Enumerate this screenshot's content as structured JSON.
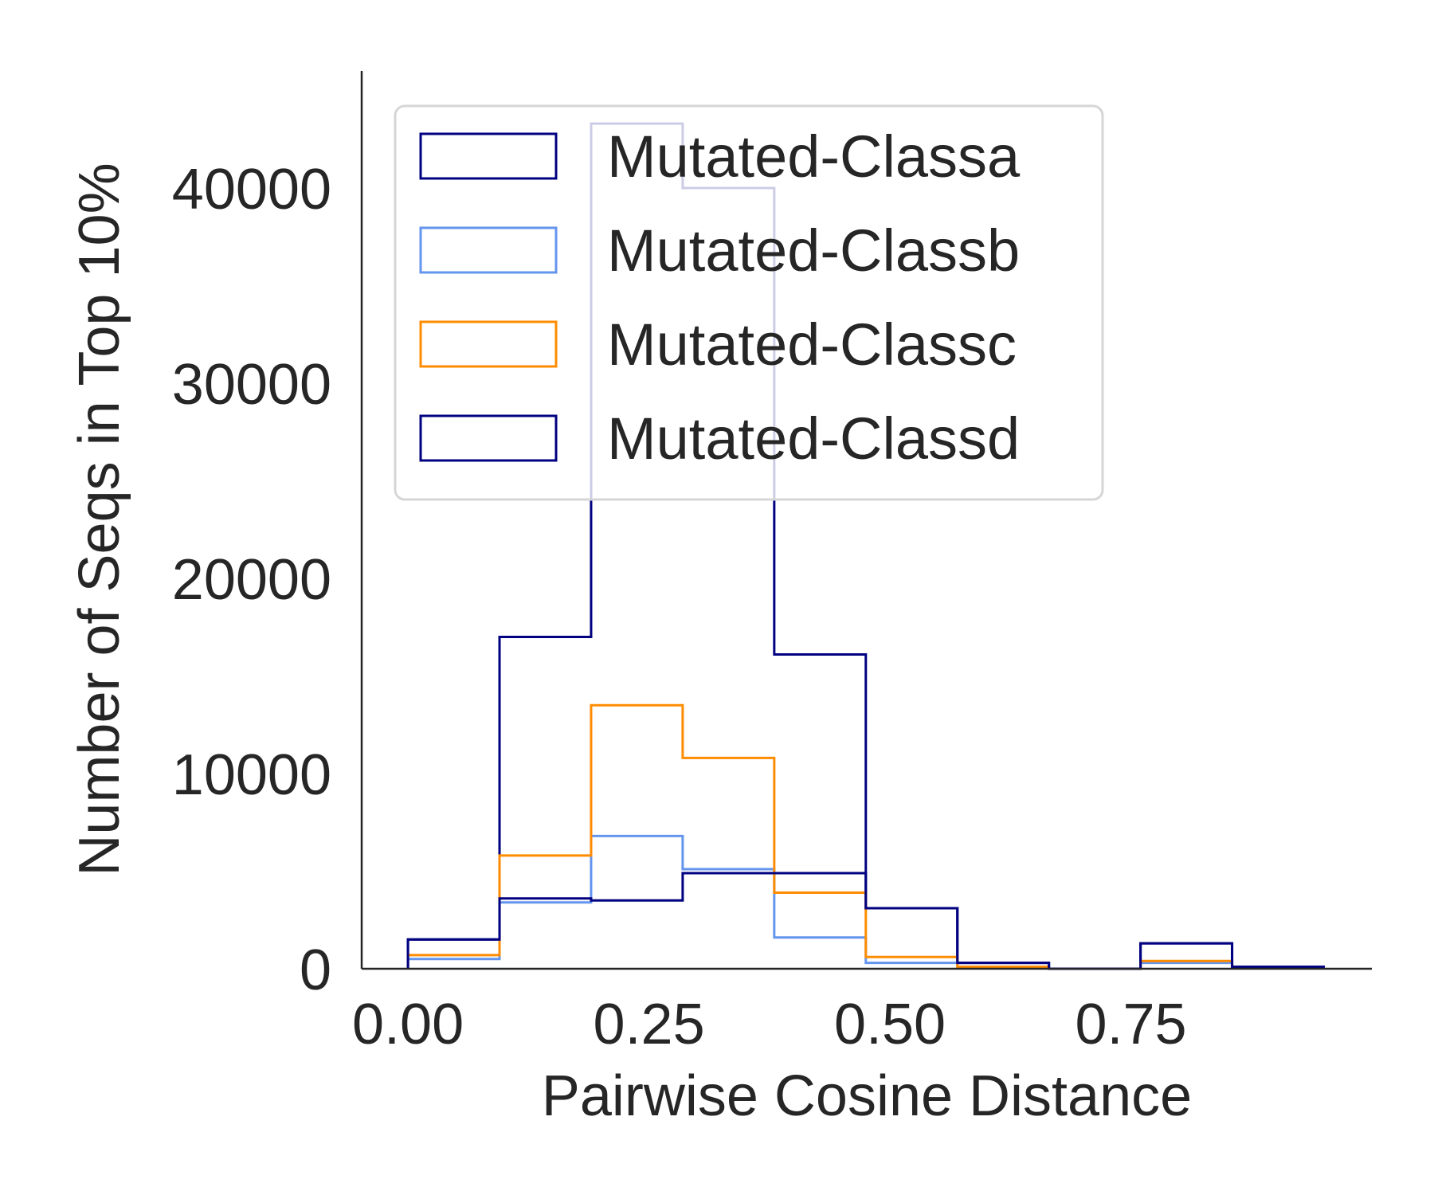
{
  "chart_data": {
    "type": "histogram",
    "xlabel": "Pairwise Cosine Distance",
    "ylabel": "Number of Seqs in Top 10%",
    "xlim": [
      -0.048,
      1.0
    ],
    "ylim": [
      0,
      46000
    ],
    "xticks": [
      0.0,
      0.25,
      0.5,
      0.75
    ],
    "xtick_labels": [
      "0.00",
      "0.25",
      "0.50",
      "0.75"
    ],
    "yticks": [
      0,
      10000,
      20000,
      30000,
      40000
    ],
    "ytick_labels": [
      "0",
      "10000",
      "20000",
      "30000",
      "40000"
    ],
    "grid": false,
    "legend_position": "upper-left",
    "bin_edges": [
      0.0,
      0.095,
      0.19,
      0.285,
      0.38,
      0.475,
      0.57,
      0.665,
      0.76,
      0.855,
      0.95
    ],
    "series": [
      {
        "name": "Mutated-Classa",
        "color": "#000080",
        "counts": [
          1500,
          17000,
          43300,
          40000,
          16100,
          3100,
          300,
          0,
          1300,
          100
        ]
      },
      {
        "name": "Mutated-Classb",
        "color": "#6495ed",
        "counts": [
          500,
          3400,
          6800,
          5100,
          1600,
          300,
          50,
          0,
          300,
          30
        ]
      },
      {
        "name": "Mutated-Classc",
        "color": "#ff8c00",
        "counts": [
          700,
          5800,
          13500,
          10800,
          3900,
          600,
          100,
          0,
          400,
          50
        ]
      },
      {
        "name": "Mutated-Classd",
        "color": "#000080",
        "counts": [
          1500,
          3600,
          3500,
          4900,
          4900,
          3100,
          300,
          0,
          1300,
          100
        ]
      }
    ]
  }
}
